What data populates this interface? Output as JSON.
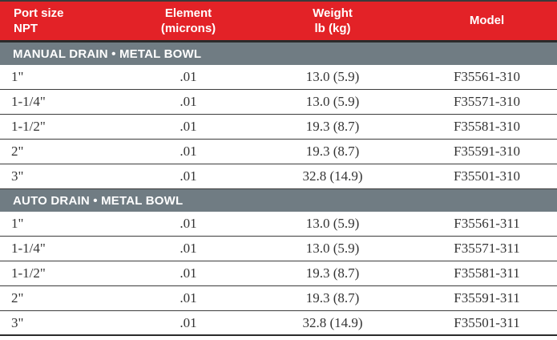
{
  "colors": {
    "header_red": "#e32227",
    "section_gray": "#707c83",
    "row_line": "#3c3c3c",
    "data_text": "#333333",
    "header_text": "#ffffff"
  },
  "table": {
    "columns": [
      {
        "line1": "Port size",
        "line2": "NPT"
      },
      {
        "line1": "Element",
        "line2": "(microns)"
      },
      {
        "line1": "Weight",
        "line2": "lb (kg)"
      },
      {
        "line1": "Model",
        "line2": ""
      }
    ],
    "sections": [
      {
        "title": "MANUAL DRAIN • METAL BOWL",
        "rows": [
          [
            "1\"",
            ".01",
            "13.0 (5.9)",
            "F35561-310"
          ],
          [
            "1-1/4\"",
            ".01",
            "13.0 (5.9)",
            "F35571-310"
          ],
          [
            "1-1/2\"",
            ".01",
            "19.3 (8.7)",
            "F35581-310"
          ],
          [
            "2\"",
            ".01",
            "19.3 (8.7)",
            "F35591-310"
          ],
          [
            "3\"",
            ".01",
            "32.8 (14.9)",
            "F35501-310"
          ]
        ]
      },
      {
        "title": "AUTO DRAIN • METAL BOWL",
        "rows": [
          [
            "1\"",
            ".01",
            "13.0 (5.9)",
            "F35561-311"
          ],
          [
            "1-1/4\"",
            ".01",
            "13.0 (5.9)",
            "F35571-311"
          ],
          [
            "1-1/2\"",
            ".01",
            "19.3 (8.7)",
            "F35581-311"
          ],
          [
            "2\"",
            ".01",
            "19.3 (8.7)",
            "F35591-311"
          ],
          [
            "3\"",
            ".01",
            "32.8 (14.9)",
            "F35501-311"
          ]
        ]
      }
    ]
  }
}
